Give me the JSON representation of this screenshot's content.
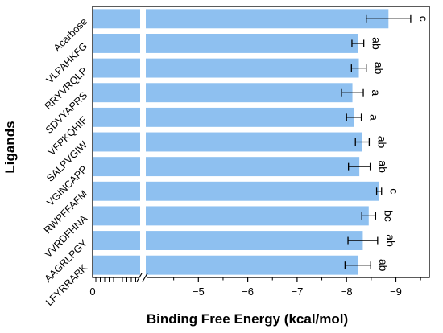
{
  "chart_data": {
    "type": "bar",
    "orientation": "horizontal",
    "xlabel": "Binding Free Energy (kcal/mol)",
    "ylabel": "Ligands",
    "axis_break": true,
    "xlim": [
      -4,
      -9.8
    ],
    "xticks": [
      -5,
      -6,
      -7,
      -8,
      -9
    ],
    "xtick_labels": [
      "−5",
      "−6",
      "−7",
      "−8",
      "−9"
    ],
    "zero_label": "0",
    "bar_color": "#8ec0f0",
    "categories": [
      "Acarbose",
      "VLPAHKFG",
      "RRYVRQLP",
      "SDVYAPRS",
      "VFPKQHIF",
      "SALPVGIW",
      "VGINCAPP",
      "RWPFFAFM",
      "VVRDFHNA",
      "AAGRLPGY",
      "LFYRRARK"
    ],
    "values": [
      -8.85,
      -8.23,
      -8.25,
      -8.12,
      -8.15,
      -8.32,
      -8.26,
      -8.66,
      -8.45,
      -8.33,
      -8.23
    ],
    "errors": [
      0.45,
      0.12,
      0.15,
      0.22,
      0.15,
      0.14,
      0.22,
      0.05,
      0.14,
      0.3,
      0.26
    ],
    "significance": [
      "c",
      "ab",
      "ab",
      "a",
      "a",
      "ab",
      "ab",
      "c",
      "bc",
      "ab",
      "ab"
    ]
  }
}
